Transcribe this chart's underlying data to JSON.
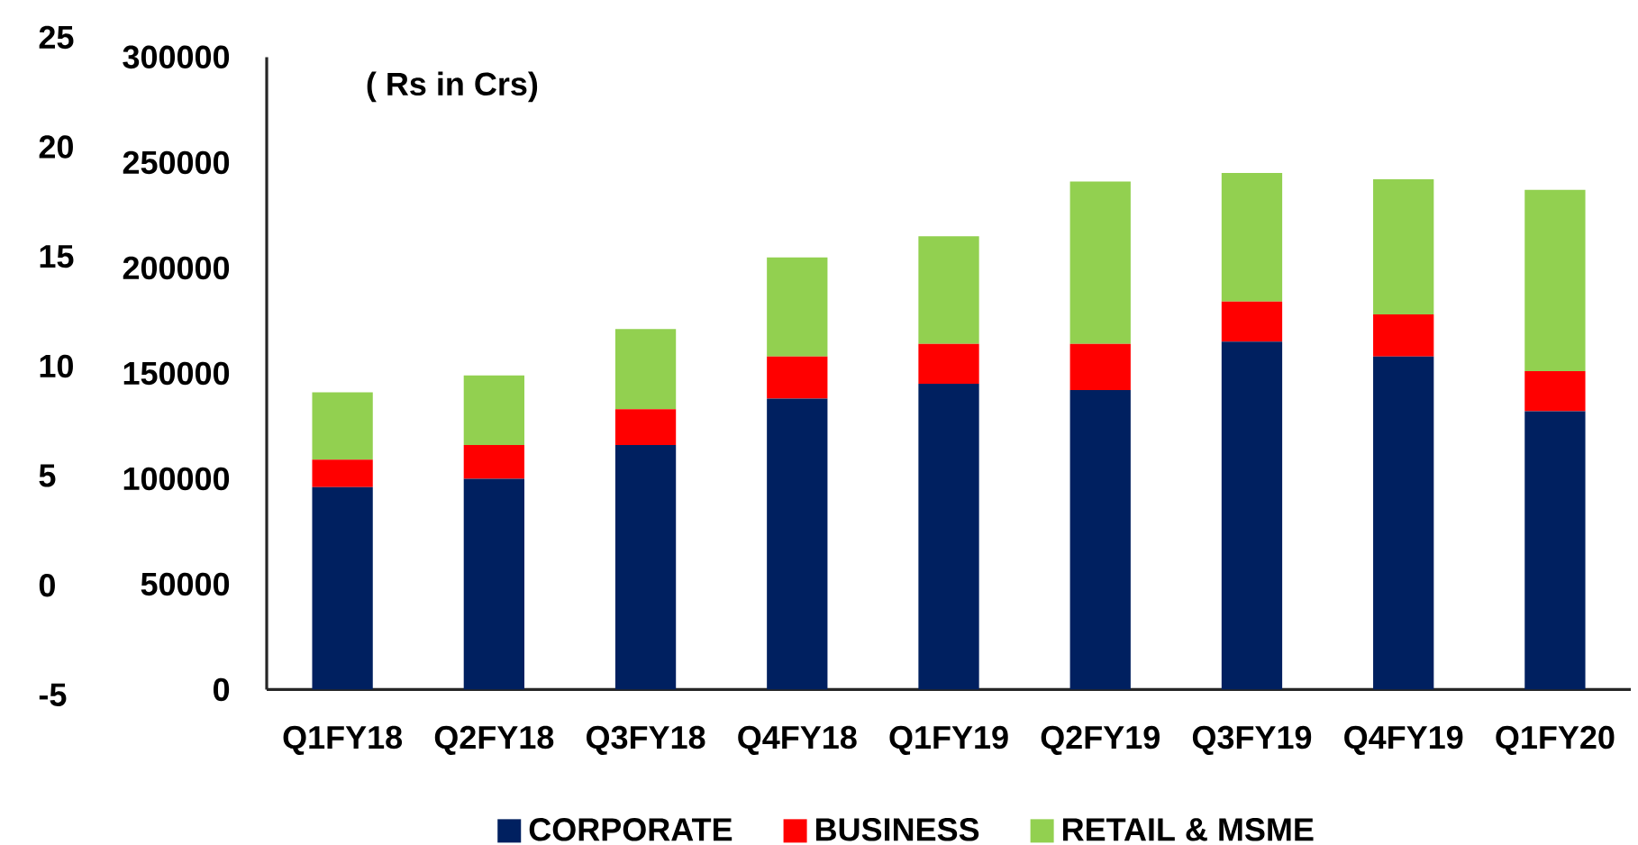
{
  "chart_data": {
    "type": "bar",
    "stacked": true,
    "categories": [
      "Q1FY18",
      "Q2FY18",
      "Q3FY18",
      "Q4FY18",
      "Q1FY19",
      "Q2FY19",
      "Q3FY19",
      "Q4FY19",
      "Q1FY20"
    ],
    "series": [
      {
        "name": "CORPORATE",
        "color": "#002060",
        "values": [
          96000,
          100000,
          116000,
          138000,
          145000,
          142000,
          165000,
          158000,
          132000
        ]
      },
      {
        "name": "BUSINESS",
        "color": "#ff0000",
        "values": [
          13000,
          16000,
          17000,
          20000,
          19000,
          22000,
          19000,
          20000,
          19000
        ]
      },
      {
        "name": "RETAIL & MSME",
        "color": "#92d050",
        "values": [
          32000,
          33000,
          38000,
          47000,
          51000,
          77000,
          61000,
          64000,
          86000
        ]
      }
    ],
    "ylim": [
      0,
      300000
    ],
    "yticks": [
      0,
      50000,
      100000,
      150000,
      200000,
      250000,
      300000
    ],
    "y2lim": [
      -5,
      25
    ],
    "y2ticks": [
      -5,
      0,
      5,
      10,
      15,
      20,
      25
    ],
    "annotations": [
      "( Rs in Crs)"
    ],
    "legend": "bottom"
  }
}
